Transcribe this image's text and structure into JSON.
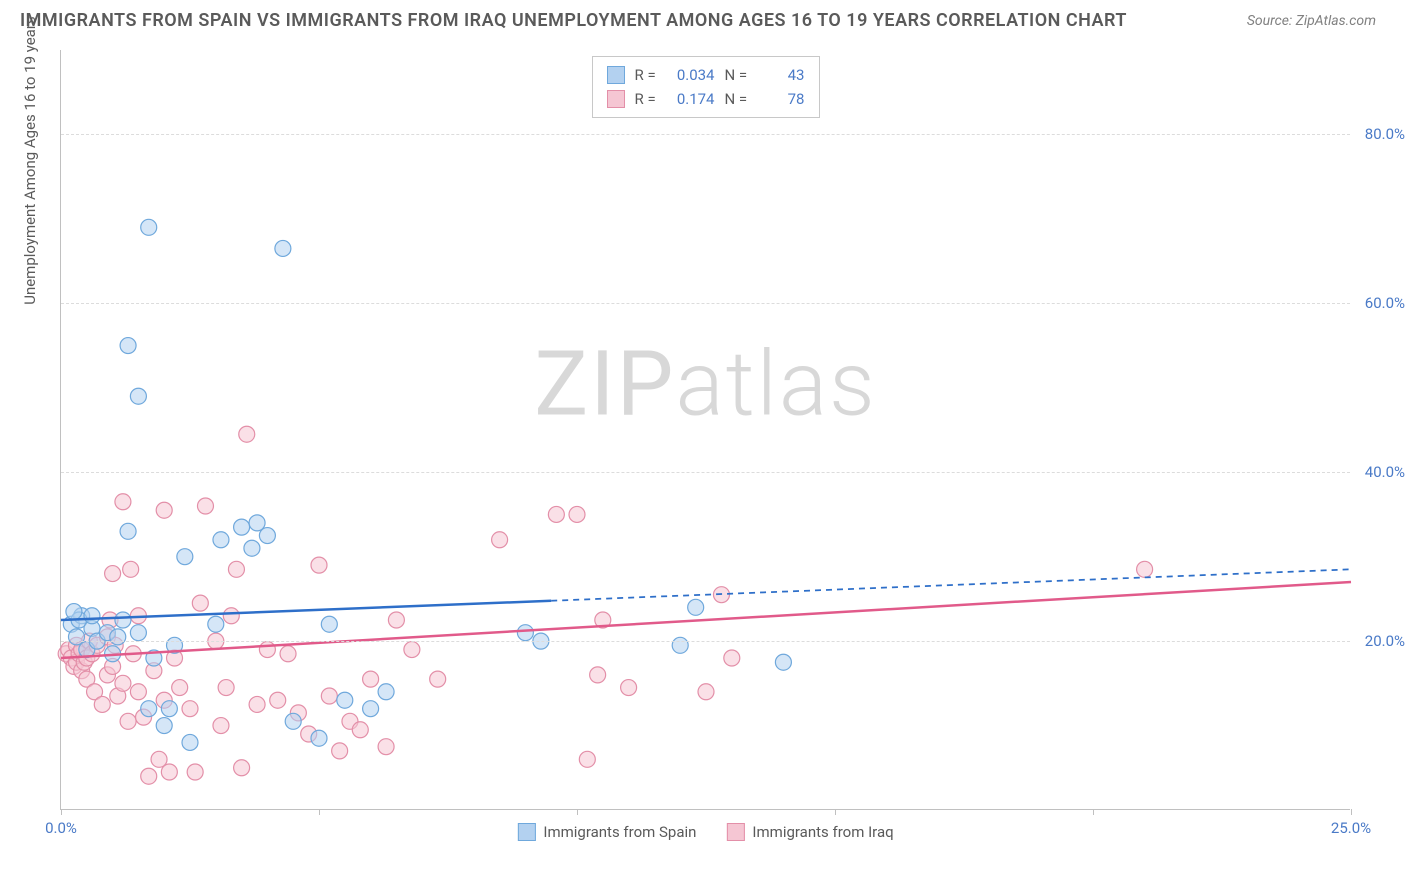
{
  "title": "IMMIGRANTS FROM SPAIN VS IMMIGRANTS FROM IRAQ UNEMPLOYMENT AMONG AGES 16 TO 19 YEARS CORRELATION CHART",
  "source": "Source: ZipAtlas.com",
  "watermark_a": "ZIP",
  "watermark_b": "atlas",
  "y_axis_label": "Unemployment Among Ages 16 to 19 years",
  "chart": {
    "type": "scatter",
    "xlim": [
      0,
      25
    ],
    "ylim": [
      0,
      90
    ],
    "x_ticks": [
      0,
      5,
      10,
      15,
      20,
      25
    ],
    "x_tick_labels": {
      "0": "0.0%",
      "25": "25.0%"
    },
    "y_ticks": [
      20,
      40,
      60,
      80
    ],
    "y_tick_labels": [
      "20.0%",
      "40.0%",
      "60.0%",
      "80.0%"
    ],
    "grid_color": "#dcdcdc",
    "axis_color": "#c0c0c0",
    "background_color": "#ffffff",
    "tick_label_color": "#4a7ac7",
    "marker_radius": 8,
    "marker_opacity": 0.55,
    "line_width": 2.5,
    "series": [
      {
        "name": "Immigrants from Spain",
        "color_fill": "#b3d1f0",
        "color_stroke": "#6fa8dc",
        "line_color": "#2e6fc9",
        "r_value": "0.034",
        "n_value": "43",
        "trend": {
          "x1": 0,
          "y1": 22.5,
          "x2": 25,
          "y2": 28.5,
          "solid_until_x": 9.5
        },
        "points": [
          [
            1.7,
            69.0
          ],
          [
            4.3,
            66.5
          ],
          [
            1.3,
            55.0
          ],
          [
            1.5,
            49.0
          ],
          [
            0.2,
            22.0
          ],
          [
            0.3,
            20.5
          ],
          [
            0.4,
            23.0
          ],
          [
            0.35,
            22.5
          ],
          [
            0.25,
            23.5
          ],
          [
            0.5,
            19.0
          ],
          [
            0.6,
            21.5
          ],
          [
            0.6,
            23.0
          ],
          [
            0.7,
            20.0
          ],
          [
            0.9,
            21.0
          ],
          [
            1.0,
            18.5
          ],
          [
            1.1,
            20.5
          ],
          [
            1.2,
            22.5
          ],
          [
            1.3,
            33.0
          ],
          [
            1.5,
            21.0
          ],
          [
            1.7,
            12.0
          ],
          [
            1.8,
            18.0
          ],
          [
            2.0,
            10.0
          ],
          [
            2.1,
            12.0
          ],
          [
            2.2,
            19.5
          ],
          [
            2.4,
            30.0
          ],
          [
            2.5,
            8.0
          ],
          [
            3.0,
            22.0
          ],
          [
            3.1,
            32.0
          ],
          [
            3.5,
            33.5
          ],
          [
            3.7,
            31.0
          ],
          [
            3.8,
            34.0
          ],
          [
            4.0,
            32.5
          ],
          [
            4.5,
            10.5
          ],
          [
            5.0,
            8.5
          ],
          [
            5.2,
            22.0
          ],
          [
            5.5,
            13.0
          ],
          [
            6.0,
            12.0
          ],
          [
            6.3,
            14.0
          ],
          [
            9.0,
            21.0
          ],
          [
            9.3,
            20.0
          ],
          [
            12.0,
            19.5
          ],
          [
            12.3,
            24.0
          ],
          [
            14.0,
            17.5
          ]
        ]
      },
      {
        "name": "Immigrants from Iraq",
        "color_fill": "#f5c6d3",
        "color_stroke": "#e38fa8",
        "line_color": "#e15a8a",
        "r_value": "0.174",
        "n_value": "78",
        "trend": {
          "x1": 0,
          "y1": 18.0,
          "x2": 25,
          "y2": 27.0,
          "solid_until_x": 25
        },
        "points": [
          [
            0.1,
            18.5
          ],
          [
            0.15,
            19.0
          ],
          [
            0.2,
            18.0
          ],
          [
            0.25,
            17.0
          ],
          [
            0.3,
            19.5
          ],
          [
            0.3,
            17.5
          ],
          [
            0.35,
            18.5
          ],
          [
            0.4,
            16.5
          ],
          [
            0.4,
            19.0
          ],
          [
            0.45,
            17.5
          ],
          [
            0.5,
            18.0
          ],
          [
            0.5,
            15.5
          ],
          [
            0.55,
            20.0
          ],
          [
            0.6,
            18.5
          ],
          [
            0.65,
            14.0
          ],
          [
            0.7,
            19.5
          ],
          [
            0.8,
            12.5
          ],
          [
            0.9,
            16.0
          ],
          [
            0.9,
            20.5
          ],
          [
            1.0,
            17.0
          ],
          [
            1.0,
            28.0
          ],
          [
            1.1,
            13.5
          ],
          [
            1.2,
            15.0
          ],
          [
            1.2,
            36.5
          ],
          [
            1.3,
            10.5
          ],
          [
            1.4,
            18.5
          ],
          [
            1.5,
            14.0
          ],
          [
            1.5,
            23.0
          ],
          [
            1.6,
            11.0
          ],
          [
            1.7,
            4.0
          ],
          [
            1.8,
            16.5
          ],
          [
            1.9,
            6.0
          ],
          [
            2.0,
            13.0
          ],
          [
            2.0,
            35.5
          ],
          [
            2.1,
            4.5
          ],
          [
            2.2,
            18.0
          ],
          [
            2.3,
            14.5
          ],
          [
            2.5,
            12.0
          ],
          [
            2.6,
            4.5
          ],
          [
            2.8,
            36.0
          ],
          [
            3.0,
            20.0
          ],
          [
            3.1,
            10.0
          ],
          [
            3.2,
            14.5
          ],
          [
            3.4,
            28.5
          ],
          [
            3.5,
            5.0
          ],
          [
            3.6,
            44.5
          ],
          [
            3.8,
            12.5
          ],
          [
            4.0,
            19.0
          ],
          [
            4.2,
            13.0
          ],
          [
            4.4,
            18.5
          ],
          [
            4.6,
            11.5
          ],
          [
            4.8,
            9.0
          ],
          [
            5.0,
            29.0
          ],
          [
            5.2,
            13.5
          ],
          [
            5.4,
            7.0
          ],
          [
            5.6,
            10.5
          ],
          [
            5.8,
            9.5
          ],
          [
            6.0,
            15.5
          ],
          [
            6.3,
            7.5
          ],
          [
            6.5,
            22.5
          ],
          [
            6.8,
            19.0
          ],
          [
            7.3,
            15.5
          ],
          [
            8.5,
            32.0
          ],
          [
            9.6,
            35.0
          ],
          [
            10.0,
            35.0
          ],
          [
            10.2,
            6.0
          ],
          [
            10.4,
            16.0
          ],
          [
            10.5,
            22.5
          ],
          [
            11.0,
            14.5
          ],
          [
            12.5,
            14.0
          ],
          [
            12.8,
            25.5
          ],
          [
            13.0,
            18.0
          ],
          [
            21.0,
            28.5
          ],
          [
            2.7,
            24.5
          ],
          [
            3.3,
            23.0
          ],
          [
            1.05,
            19.5
          ],
          [
            0.95,
            22.5
          ],
          [
            1.35,
            28.5
          ]
        ]
      }
    ]
  },
  "legend_bottom": [
    {
      "label": "Immigrants from Spain",
      "fill": "#b3d1f0",
      "stroke": "#6fa8dc"
    },
    {
      "label": "Immigrants from Iraq",
      "fill": "#f5c6d3",
      "stroke": "#e38fa8"
    }
  ]
}
